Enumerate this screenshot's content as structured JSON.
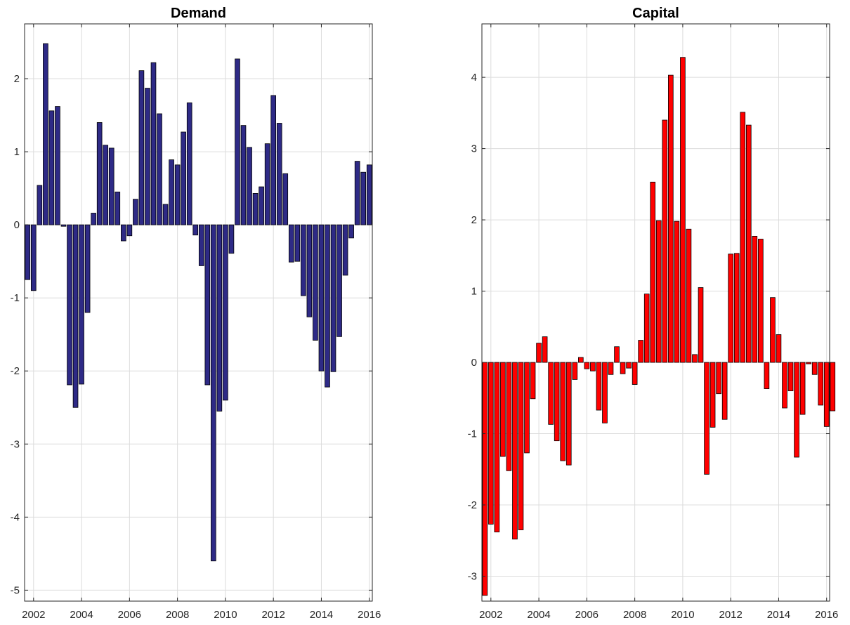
{
  "chart_data": [
    {
      "type": "bar",
      "title": "Demand",
      "color": "#2e2a86",
      "xlim": [
        2001.625,
        2016.125
      ],
      "ylim": [
        -5.15,
        2.75
      ],
      "yticks": [
        2,
        1,
        0,
        -1,
        -2,
        -3,
        -4,
        -5
      ],
      "ytick_labels": [
        "2",
        "1",
        "0",
        "-1",
        "-2",
        "-3",
        "-4",
        "-5"
      ],
      "xticks": [
        2002,
        2004,
        2006,
        2008,
        2010,
        2012,
        2014,
        2016
      ],
      "xtick_labels": [
        "2002",
        "2004",
        "2006",
        "2008",
        "2010",
        "2012",
        "2014",
        "2016"
      ],
      "grid": true,
      "x_start": 2001.75,
      "x_step": 0.25,
      "values": [
        -0.75,
        -0.9,
        0.54,
        2.48,
        1.56,
        1.62,
        -0.02,
        -2.19,
        -2.5,
        -2.18,
        -1.2,
        0.16,
        1.4,
        1.09,
        1.05,
        0.45,
        -0.22,
        -0.15,
        0.35,
        2.11,
        1.87,
        2.22,
        1.52,
        0.28,
        0.89,
        0.82,
        1.27,
        1.67,
        -0.14,
        -0.56,
        -2.19,
        -4.6,
        -2.55,
        -2.4,
        -0.39,
        2.27,
        1.36,
        1.06,
        0.43,
        0.52,
        1.11,
        1.77,
        1.39,
        0.7,
        -0.51,
        -0.5,
        -0.97,
        -1.26,
        -1.58,
        -2.0,
        -2.22,
        -2.01,
        -1.53,
        -0.69,
        -0.18,
        0.87,
        0.72,
        0.82
      ]
    },
    {
      "type": "bar",
      "title": "Capital",
      "color": "#ff0000",
      "xlim": [
        2001.625,
        2016.125
      ],
      "ylim": [
        -3.35,
        4.75
      ],
      "yticks": [
        4,
        3,
        2,
        1,
        0,
        -1,
        -2,
        -3
      ],
      "ytick_labels": [
        "4",
        "3",
        "2",
        "1",
        "0",
        "-1",
        "-2",
        "-3"
      ],
      "xticks": [
        2002,
        2004,
        2006,
        2008,
        2010,
        2012,
        2014,
        2016
      ],
      "xtick_labels": [
        "2002",
        "2004",
        "2006",
        "2008",
        "2010",
        "2012",
        "2014",
        "2016"
      ],
      "grid": true,
      "x_start": 2001.75,
      "x_step": 0.25,
      "values": [
        -3.27,
        -2.27,
        -2.38,
        -1.32,
        -1.52,
        -2.48,
        -2.35,
        -1.27,
        -0.51,
        0.27,
        0.36,
        -0.87,
        -1.1,
        -1.38,
        -1.44,
        -0.24,
        0.07,
        -0.09,
        -0.12,
        -0.67,
        -0.85,
        -0.17,
        0.22,
        -0.16,
        -0.08,
        -0.31,
        0.31,
        0.96,
        2.53,
        1.99,
        3.4,
        4.03,
        1.98,
        4.28,
        1.87,
        0.11,
        1.05,
        -1.57,
        -0.91,
        -0.44,
        -0.8,
        1.52,
        1.53,
        3.51,
        3.33,
        1.77,
        1.73,
        -0.37,
        0.91,
        0.39,
        -0.64,
        -0.4,
        -1.33,
        -0.73,
        -0.02,
        -0.17,
        -0.6,
        -0.9,
        -0.68
      ]
    }
  ]
}
